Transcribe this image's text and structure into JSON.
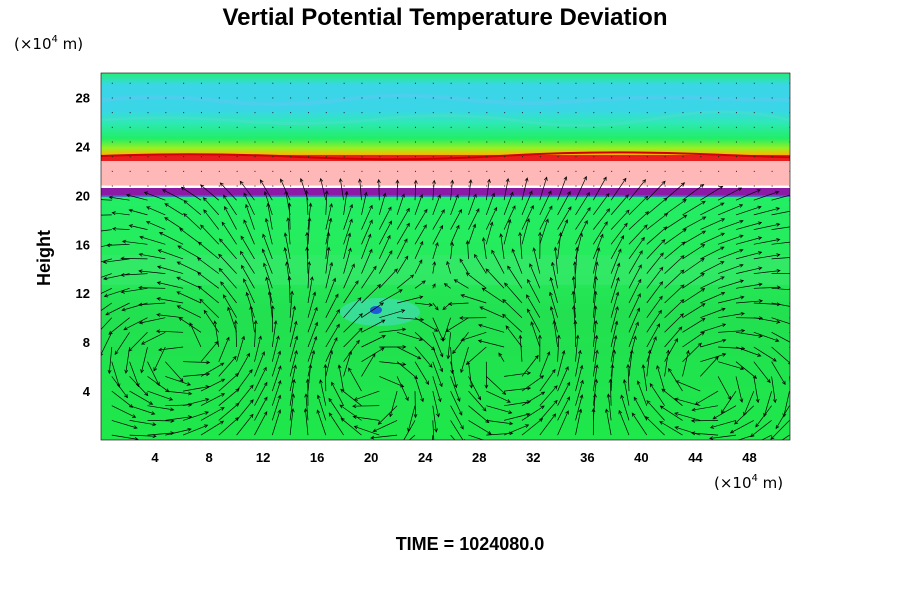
{
  "chart_data": {
    "type": "heatmap",
    "title": "Vertial Potential Temperature Deviation",
    "ylabel": "Height",
    "xlabel": "",
    "x_unit_prefix": "(×10",
    "x_unit_exp": "4",
    "x_unit_suffix": " m)",
    "y_unit_prefix": "(×10",
    "y_unit_exp": "4",
    "y_unit_suffix": " m)",
    "time_label": "TIME = 1024080.0",
    "xlim": [
      0,
      51
    ],
    "ylim": [
      0,
      30
    ],
    "x_ticks": [
      4,
      8,
      12,
      16,
      20,
      24,
      28,
      32,
      36,
      40,
      44,
      48
    ],
    "y_ticks": [
      4,
      8,
      12,
      16,
      20,
      24,
      28
    ],
    "colors": {
      "background_field": "#1ee84a",
      "upper_cyan": "#3ad6e8",
      "upper_green": "#22ee66",
      "red_line": "#e81e1e",
      "orange_band": "#ffb400",
      "pink_layer": "#ffb8b8",
      "purple_layer": "#8c1aa6",
      "yellow_band": "#d8f000",
      "vectors": "#000000"
    },
    "layers": [
      {
        "name": "upper-cyan-band",
        "y_range": [
          26.5,
          29.5
        ]
      },
      {
        "name": "red-line",
        "y_range": [
          22.8,
          23.3
        ]
      },
      {
        "name": "pink-layer",
        "y_range": [
          20.8,
          22.8
        ]
      },
      {
        "name": "purple-layer",
        "y_range": [
          19.9,
          20.6
        ]
      }
    ],
    "vortices": [
      {
        "x_center": 20,
        "y_center": 5,
        "sense": "clockwise"
      },
      {
        "x_center": 30,
        "y_center": 6,
        "sense": "counterclockwise"
      },
      {
        "x_center": 44,
        "y_center": 5,
        "sense": "clockwise"
      },
      {
        "x_center": 7,
        "y_center": 7,
        "sense": "counterclockwise"
      }
    ]
  }
}
